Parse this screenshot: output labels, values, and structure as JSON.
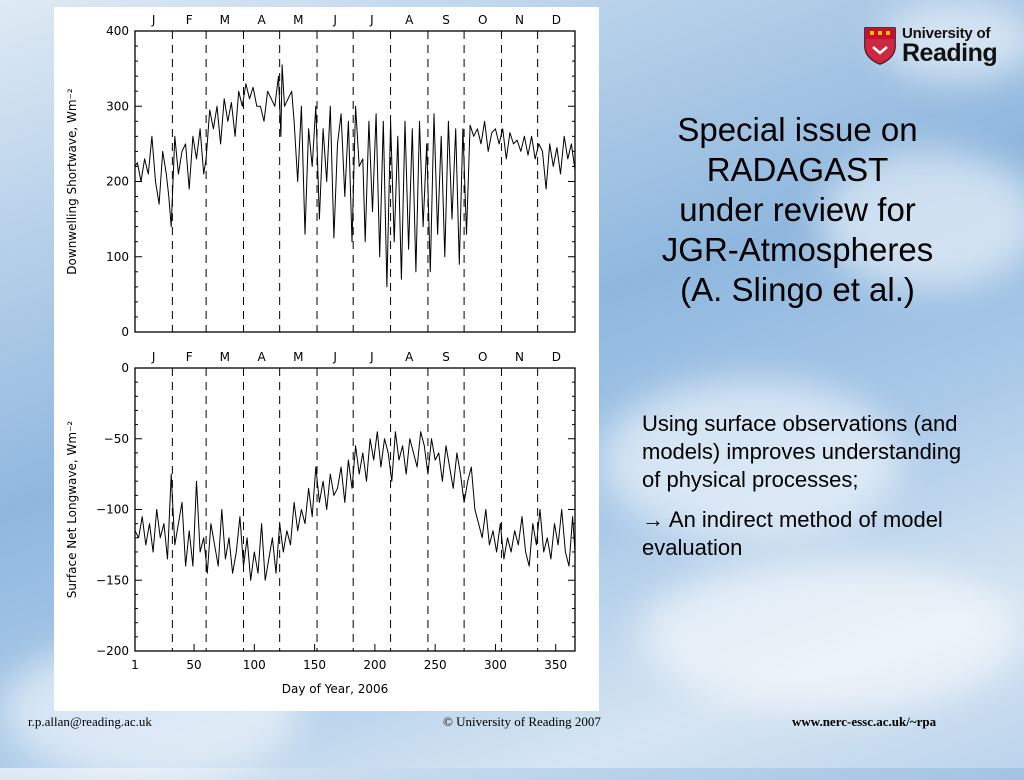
{
  "slide": {
    "title_lines": [
      "Special issue on",
      "RADAGAST",
      "under review for",
      "JGR-Atmospheres",
      "(A. Slingo et al.)"
    ],
    "body": {
      "p1": "Using surface observations (and models) improves understanding of physical processes;",
      "p2": "→ An indirect method of model evaluation"
    },
    "logo": {
      "line1": "University of",
      "line2": "Reading"
    },
    "footer": {
      "email": "r.p.allan@reading.ac.uk",
      "copyright": "© University of Reading 2007",
      "url": "www.nerc-essc.ac.uk/~rpa"
    },
    "colors": {
      "logo_red": "#c8102e"
    }
  },
  "chart_data": [
    {
      "type": "line",
      "ylabel": "Downwelling Shortwave, Wm⁻²",
      "xlabel": "",
      "ylim": [
        0,
        400
      ],
      "yticks": [
        0,
        100,
        200,
        300,
        400
      ],
      "xlim": [
        1,
        366
      ],
      "month_labels": [
        "J",
        "F",
        "M",
        "A",
        "M",
        "J",
        "J",
        "A",
        "S",
        "O",
        "N",
        "D"
      ],
      "month_boundaries": [
        32,
        60,
        91,
        121,
        152,
        182,
        213,
        244,
        274,
        305,
        335
      ],
      "series": [
        {
          "x": [
            1,
            3,
            6,
            9,
            12,
            15,
            18,
            21,
            24,
            27,
            29,
            31,
            34,
            37,
            40,
            43,
            46,
            49,
            52,
            55,
            58,
            60,
            63,
            66,
            69,
            72,
            75,
            78,
            81,
            84,
            87,
            90,
            93,
            96,
            99,
            102,
            105,
            108,
            111,
            114,
            117,
            120,
            122,
            123,
            125,
            128,
            131,
            133,
            136,
            139,
            142,
            145,
            148,
            151,
            154,
            157,
            160,
            163,
            166,
            169,
            172,
            175,
            178,
            181,
            184,
            187,
            190,
            192,
            195,
            198,
            201,
            204,
            207,
            210,
            213,
            216,
            219,
            222,
            225,
            228,
            231,
            234,
            237,
            240,
            243,
            246,
            249,
            252,
            255,
            258,
            261,
            264,
            267,
            270,
            273,
            276,
            279,
            282,
            285,
            288,
            291,
            294,
            297,
            300,
            303,
            306,
            309,
            312,
            315,
            318,
            321,
            324,
            327,
            330,
            333,
            336,
            339,
            342,
            345,
            348,
            351,
            354,
            357,
            360,
            363,
            366
          ],
          "values": [
            220,
            225,
            200,
            230,
            210,
            260,
            200,
            170,
            240,
            210,
            180,
            140,
            260,
            210,
            240,
            250,
            190,
            260,
            230,
            270,
            210,
            230,
            295,
            270,
            300,
            250,
            310,
            280,
            305,
            260,
            320,
            300,
            330,
            310,
            325,
            300,
            300,
            280,
            320,
            310,
            300,
            340,
            260,
            355,
            300,
            310,
            320,
            280,
            200,
            300,
            130,
            270,
            220,
            300,
            150,
            270,
            200,
            300,
            125,
            250,
            290,
            180,
            280,
            120,
            300,
            220,
            230,
            120,
            280,
            160,
            290,
            100,
            280,
            60,
            280,
            120,
            260,
            70,
            280,
            110,
            270,
            80,
            280,
            140,
            250,
            80,
            290,
            130,
            260,
            100,
            280,
            150,
            270,
            90,
            270,
            130,
            275,
            260,
            270,
            250,
            280,
            240,
            265,
            270,
            250,
            270,
            230,
            265,
            250,
            255,
            240,
            260,
            235,
            260,
            230,
            250,
            240,
            190,
            250,
            220,
            245,
            210,
            260,
            230,
            250,
            215
          ]
        }
      ]
    },
    {
      "type": "line",
      "ylabel": "Surface Net Longwave, Wm⁻²",
      "xlabel": "Day of Year, 2006",
      "ylim": [
        -200,
        0
      ],
      "yticks": [
        0,
        -50,
        -100,
        -150,
        -200
      ],
      "xlim": [
        1,
        366
      ],
      "xticks": [
        1,
        50,
        100,
        150,
        200,
        250,
        300,
        350
      ],
      "month_labels": [
        "J",
        "F",
        "M",
        "A",
        "M",
        "J",
        "J",
        "A",
        "S",
        "O",
        "N",
        "D"
      ],
      "month_boundaries": [
        32,
        60,
        91,
        121,
        152,
        182,
        213,
        244,
        274,
        305,
        335
      ],
      "series": [
        {
          "x": [
            1,
            4,
            7,
            10,
            13,
            16,
            19,
            22,
            25,
            28,
            31,
            34,
            37,
            40,
            43,
            46,
            49,
            52,
            55,
            58,
            61,
            64,
            67,
            70,
            73,
            76,
            79,
            82,
            85,
            88,
            91,
            94,
            97,
            100,
            103,
            106,
            109,
            112,
            115,
            118,
            121,
            124,
            127,
            130,
            133,
            136,
            139,
            142,
            145,
            148,
            151,
            154,
            157,
            160,
            163,
            166,
            169,
            172,
            175,
            178,
            181,
            184,
            187,
            190,
            193,
            196,
            199,
            202,
            205,
            208,
            211,
            214,
            217,
            220,
            223,
            226,
            229,
            232,
            235,
            238,
            241,
            244,
            247,
            250,
            253,
            256,
            259,
            262,
            265,
            268,
            271,
            274,
            277,
            280,
            283,
            286,
            289,
            292,
            295,
            298,
            301,
            304,
            307,
            310,
            313,
            316,
            319,
            322,
            325,
            328,
            331,
            334,
            337,
            340,
            343,
            346,
            349,
            352,
            355,
            358,
            361,
            364,
            366
          ],
          "values": [
            -115,
            -120,
            -105,
            -125,
            -110,
            -130,
            -100,
            -120,
            -110,
            -135,
            -75,
            -125,
            -110,
            -95,
            -140,
            -115,
            -140,
            -80,
            -130,
            -120,
            -145,
            -110,
            -125,
            -140,
            -100,
            -135,
            -120,
            -145,
            -130,
            -105,
            -140,
            -120,
            -150,
            -130,
            -145,
            -110,
            -150,
            -135,
            -120,
            -145,
            -110,
            -130,
            -115,
            -125,
            -95,
            -115,
            -100,
            -110,
            -85,
            -105,
            -70,
            -95,
            -80,
            -100,
            -75,
            -90,
            -85,
            -70,
            -95,
            -65,
            -85,
            -55,
            -75,
            -60,
            -80,
            -50,
            -65,
            -45,
            -70,
            -50,
            -60,
            -80,
            -45,
            -65,
            -55,
            -75,
            -50,
            -60,
            -70,
            -45,
            -55,
            -75,
            -50,
            -65,
            -60,
            -80,
            -55,
            -70,
            -85,
            -60,
            -75,
            -95,
            -80,
            -70,
            -100,
            -110,
            -120,
            -100,
            -125,
            -115,
            -130,
            -110,
            -135,
            -120,
            -130,
            -115,
            -125,
            -105,
            -130,
            -140,
            -110,
            -125,
            -100,
            -130,
            -120,
            -135,
            -110,
            -125,
            -100,
            -130,
            -140,
            -105,
            -130
          ]
        }
      ]
    }
  ]
}
